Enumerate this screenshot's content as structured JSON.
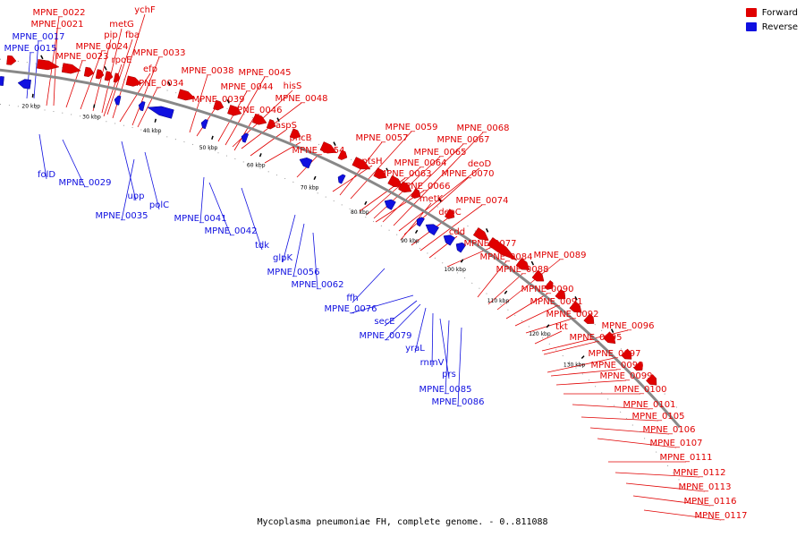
{
  "colors": {
    "forward": "#e00000",
    "reverse": "#1010e0",
    "backbone": "#888888",
    "tick": "#000000"
  },
  "legend": [
    {
      "label": "Forward",
      "color": "#e00000"
    },
    {
      "label": "Reverse",
      "color": "#1010e0"
    }
  ],
  "caption": "Mycoplasma pneumoniae FH, complete genome. - 0..811088",
  "scale_ticks": [
    "20 kbp",
    "30 kbp",
    "40 kbp",
    "50 kbp",
    "60 kbp",
    "70 kbp",
    "80 kbp",
    "90 kbp",
    "100 kbp",
    "110 kbp",
    "120 kbp",
    "130 kbp"
  ],
  "forward_genes": [
    "MPNE_0022",
    "MPNE_0021",
    "MPNE_0023",
    "MPNE_0024",
    "pip",
    "metG",
    "fba",
    "rpoE",
    "ychF",
    "efp",
    "MPNE_0033",
    "MPNE_0034",
    "MPNE_0038",
    "MPNE_0039",
    "MPNE_0044",
    "MPNE_0045",
    "hisS",
    "MPNE_0048",
    "MPNE_0046",
    "aspS",
    "pncB",
    "MPNE_0054",
    "ptsH",
    "MPNE_0057",
    "MPNE_0059",
    "MPNE_0063",
    "MPNE_0064",
    "MPNE_0065",
    "MPNE_0067",
    "MPNE_0068",
    "deoD",
    "MPNE_0070",
    "MPNE_0066",
    "metK",
    "deoC",
    "MPNE_0074",
    "cdd",
    "MPNE_0077",
    "MPNE_0084",
    "MPNE_0088",
    "MPNE_0089",
    "MPNE_0090",
    "MPNE_0091",
    "MPNE_0092",
    "tkt",
    "MPNE_0096",
    "MPNE_0095",
    "MPNE_0097",
    "MPNE_0098",
    "MPNE_0099",
    "MPNE_0100",
    "MPNE_0101",
    "MPNE_0105",
    "MPNE_0106",
    "MPNE_0107",
    "MPNE_0111",
    "MPNE_0112",
    "MPNE_0113",
    "MPNE_0116",
    "MPNE_0117"
  ],
  "reverse_genes": [
    "MPNE_0017",
    "MPNE_0015",
    "folD",
    "MPNE_0029",
    "upp",
    "polC",
    "MPNE_0035",
    "MPNE_0041",
    "MPNE_0042",
    "tdk",
    "glpK",
    "MPNE_0056",
    "MPNE_0062",
    "ffh",
    "MPNE_0076",
    "secE",
    "MPNE_0079",
    "yraL",
    "rnmV",
    "prs",
    "MPNE_0085",
    "MPNE_0086"
  ]
}
